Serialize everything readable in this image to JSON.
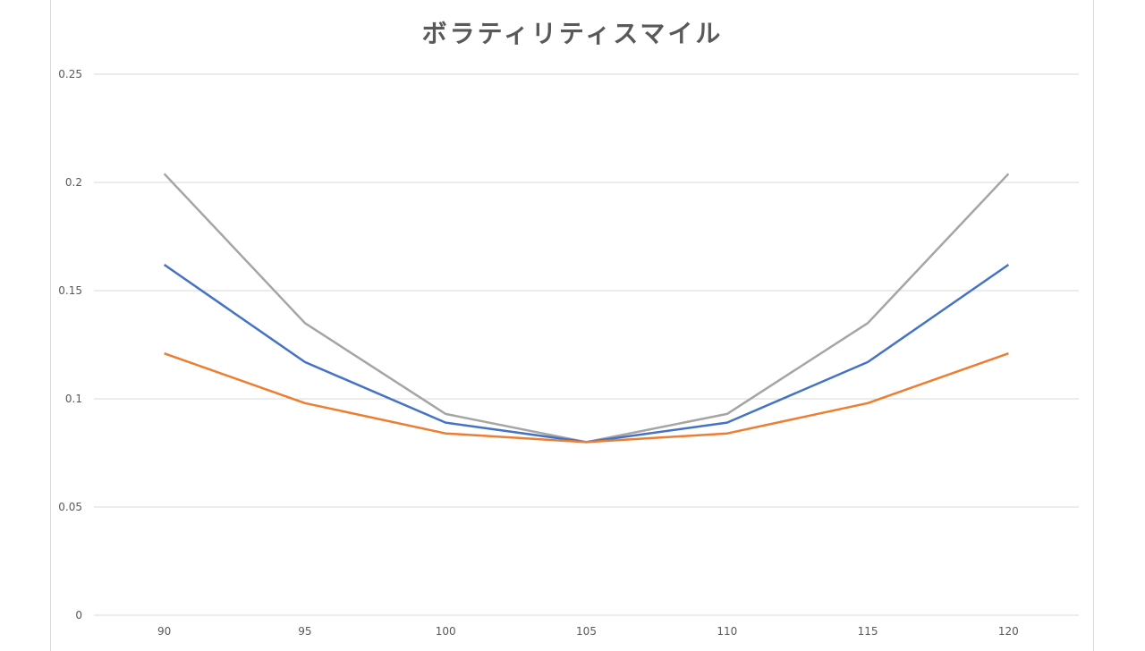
{
  "chart_data": {
    "type": "line",
    "title": "ボラティリティスマイル",
    "xlabel": "",
    "ylabel": "",
    "categories": [
      "90",
      "95",
      "100",
      "105",
      "110",
      "115",
      "120"
    ],
    "ylim": [
      0,
      0.25
    ],
    "yticks": [
      "0",
      "0.05",
      "0.1",
      "0.15",
      "0.2",
      "0.25"
    ],
    "grid": true,
    "legend": "none",
    "series": [
      {
        "name": "series-blue",
        "color": "#4472c4",
        "values": [
          0.162,
          0.117,
          0.089,
          0.08,
          0.089,
          0.117,
          0.162
        ]
      },
      {
        "name": "series-orange",
        "color": "#ed7d31",
        "values": [
          0.121,
          0.098,
          0.084,
          0.08,
          0.084,
          0.098,
          0.121
        ]
      },
      {
        "name": "series-gray",
        "color": "#a5a5a5",
        "values": [
          0.204,
          0.135,
          0.093,
          0.08,
          0.093,
          0.135,
          0.204
        ]
      }
    ]
  }
}
